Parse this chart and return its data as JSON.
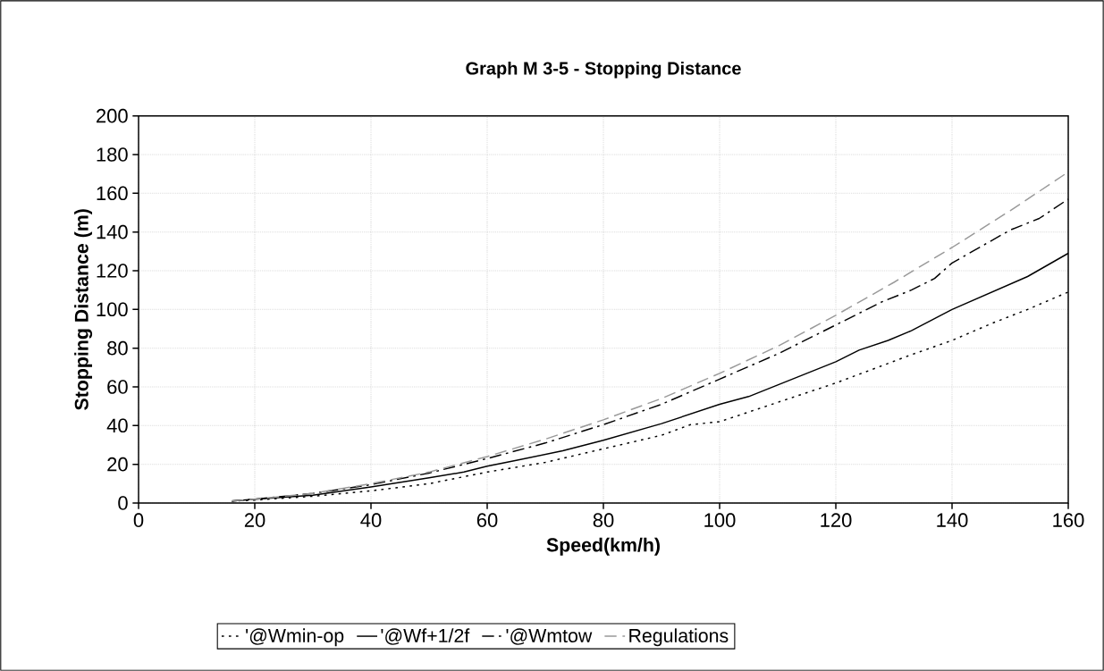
{
  "chart_data": {
    "type": "line",
    "title": "Graph M 3-5 - Stopping Distance",
    "xlabel": "Speed(km/h)",
    "ylabel": "Stopping Distance (m)",
    "xlim": [
      0,
      160
    ],
    "xticks": [
      0,
      20,
      40,
      60,
      80,
      100,
      120,
      140,
      160
    ],
    "ylim": [
      0,
      200
    ],
    "yticks": [
      0,
      20,
      40,
      60,
      80,
      100,
      120,
      140,
      160,
      180,
      200
    ],
    "grid": true,
    "legend": "bottom",
    "series": [
      {
        "name": "'@Wmin-op",
        "color": "#000000",
        "line_style": "dotted",
        "x": [
          16,
          20,
          30,
          40,
          50,
          60,
          70,
          80,
          90,
          95,
          100,
          105,
          112,
          120,
          128,
          133,
          140,
          147,
          153,
          160
        ],
        "values": [
          1,
          1.5,
          3.5,
          6.3,
          10,
          16,
          21,
          28,
          35,
          40.5,
          42,
          47,
          54,
          62,
          71,
          76.6,
          84,
          93,
          100,
          109
        ]
      },
      {
        "name": "'@Wf+1/2f",
        "color": "#000000",
        "line_style": "solid",
        "x": [
          16,
          20,
          30,
          40,
          50,
          56,
          60,
          65,
          73,
          80,
          90,
          100,
          105,
          110,
          120,
          124,
          129,
          133,
          140,
          153,
          160
        ],
        "values": [
          1,
          2,
          4,
          8.3,
          13,
          16,
          19,
          22,
          27,
          32.4,
          41,
          51,
          55,
          61,
          73,
          79,
          84,
          89,
          100,
          117,
          129
        ]
      },
      {
        "name": "'@Wmtow",
        "color": "#000000",
        "line_style": "dashdot",
        "x": [
          16,
          20,
          30,
          40,
          50,
          60,
          70,
          80,
          90,
          100,
          110,
          120,
          128,
          133,
          137,
          140,
          150,
          155,
          160
        ],
        "values": [
          1,
          2,
          5,
          9.5,
          15.5,
          23,
          31,
          40.5,
          51,
          64,
          77,
          92,
          104,
          110,
          116,
          124,
          141,
          147,
          157
        ]
      },
      {
        "name": "Regulations",
        "color": "#999999",
        "line_style": "dashed",
        "x": [
          16,
          20,
          30,
          40,
          50,
          60,
          70,
          80,
          90,
          100,
          110,
          120,
          130,
          140,
          150,
          160
        ],
        "values": [
          1,
          2,
          5,
          10,
          16,
          24,
          33,
          43,
          54,
          67,
          81,
          97,
          114,
          132,
          151,
          171
        ]
      }
    ]
  }
}
